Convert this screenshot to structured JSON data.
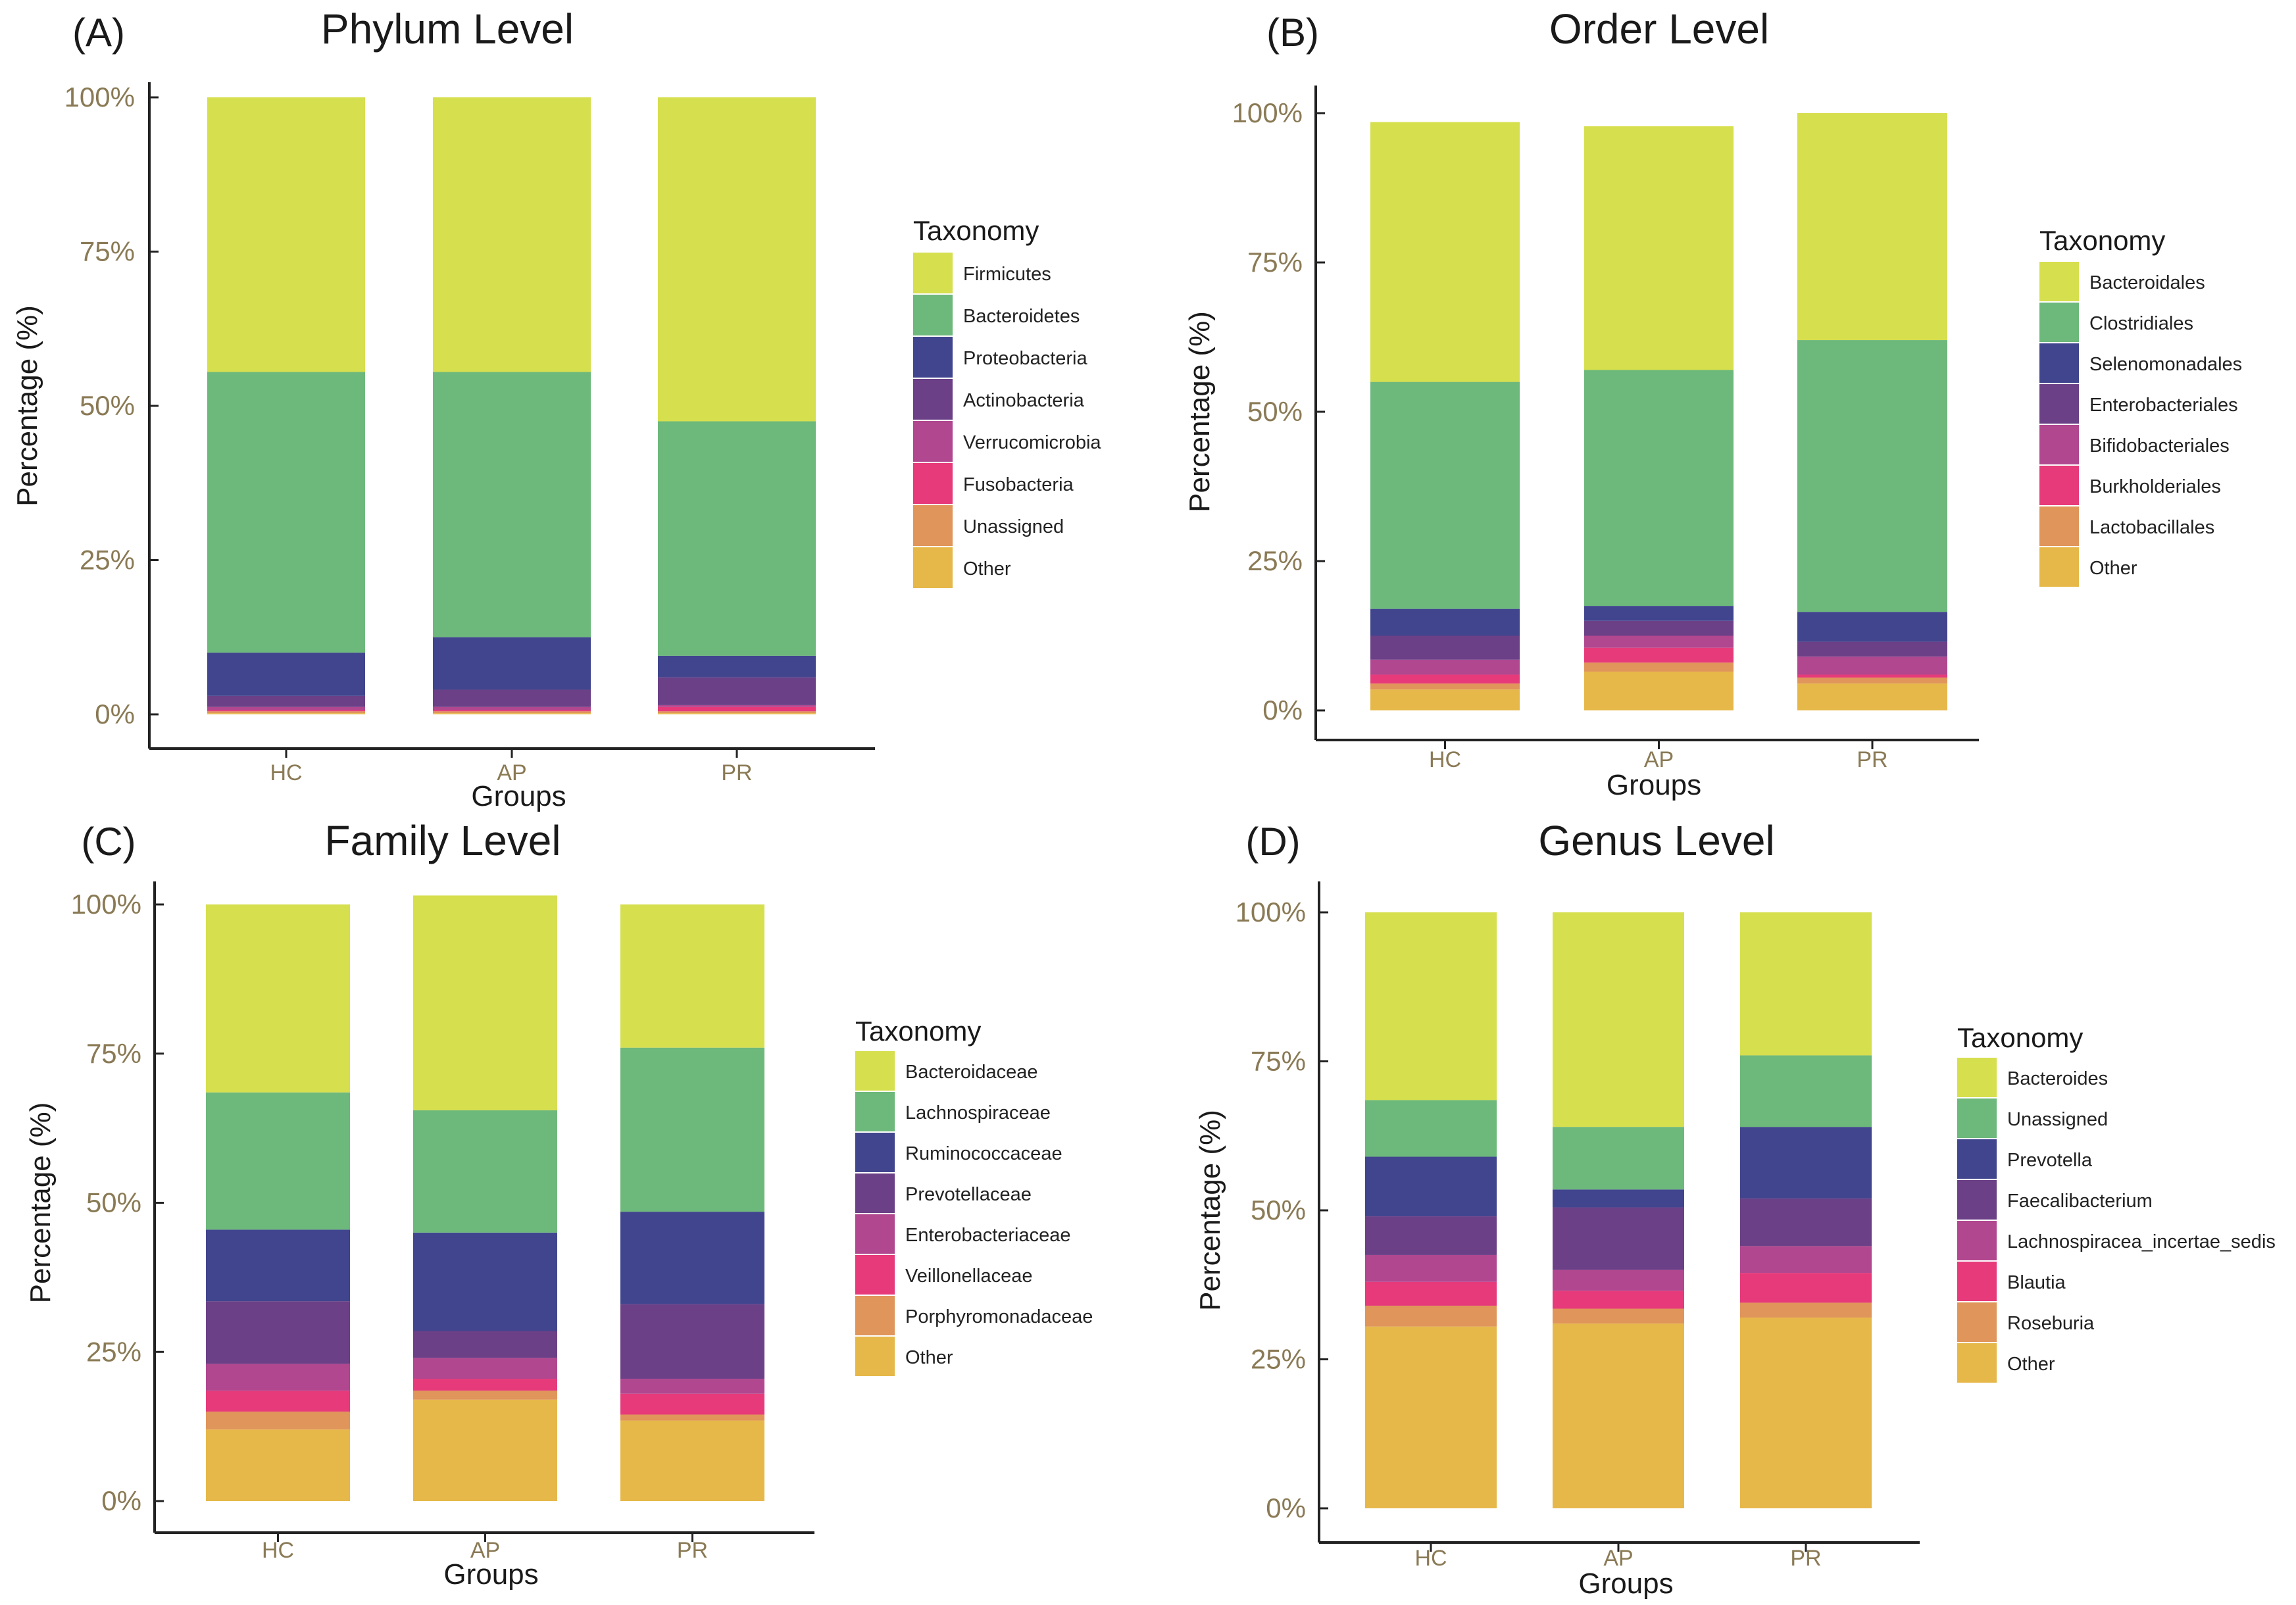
{
  "chart_data": [
    {
      "type": "bar",
      "stacked": true,
      "panel_label": "(A)",
      "title": "Phylum Level",
      "xlabel": "Groups",
      "ylabel": "Percentage (%)",
      "ylim": [
        0,
        100
      ],
      "yticks": [
        "0%",
        "25%",
        "50%",
        "75%",
        "100%"
      ],
      "categories": [
        "HC",
        "AP",
        "PR"
      ],
      "legend_title": "Taxonomy",
      "series": [
        {
          "name": "Firmicutes",
          "color": "#d6df4e",
          "values": [
            44.5,
            44.5,
            52.5
          ]
        },
        {
          "name": "Bacteroidetes",
          "color": "#6db87b",
          "values": [
            45.5,
            43.0,
            38.0
          ]
        },
        {
          "name": "Proteobacteria",
          "color": "#41458e",
          "values": [
            7.0,
            8.5,
            3.5
          ]
        },
        {
          "name": "Actinobacteria",
          "color": "#6b4087",
          "values": [
            1.8,
            2.8,
            4.5
          ]
        },
        {
          "name": "Verrucomicrobia",
          "color": "#b0478f",
          "values": [
            0.5,
            0.5,
            0.3
          ]
        },
        {
          "name": "Fusobacteria",
          "color": "#e63a7a",
          "values": [
            0.2,
            0.2,
            0.7
          ]
        },
        {
          "name": "Unassigned",
          "color": "#e0955a",
          "values": [
            0.3,
            0.3,
            0.3
          ]
        },
        {
          "name": "Other",
          "color": "#e6b84a",
          "values": [
            0.2,
            0.2,
            0.2
          ]
        }
      ]
    },
    {
      "type": "bar",
      "stacked": true,
      "panel_label": "(B)",
      "title": "Order Level",
      "xlabel": "Groups",
      "ylabel": "Percentage (%)",
      "ylim": [
        0,
        100
      ],
      "yticks": [
        "0%",
        "25%",
        "50%",
        "75%",
        "100%"
      ],
      "categories": [
        "HC",
        "AP",
        "PR"
      ],
      "legend_title": "Taxonomy",
      "series": [
        {
          "name": "Bacteroidales",
          "color": "#d6df4e",
          "values": [
            43.5,
            40.8,
            38.0
          ]
        },
        {
          "name": "Clostridiales",
          "color": "#6db87b",
          "values": [
            38.0,
            39.5,
            45.5
          ]
        },
        {
          "name": "Selenomonadales",
          "color": "#41458e",
          "values": [
            4.5,
            2.5,
            5.0
          ]
        },
        {
          "name": "Enterobacteriales",
          "color": "#6b4087",
          "values": [
            4.0,
            2.5,
            2.5
          ]
        },
        {
          "name": "Bifidobacteriales",
          "color": "#b0478f",
          "values": [
            2.5,
            2.0,
            3.0
          ]
        },
        {
          "name": "Burkholderiales",
          "color": "#e63a7a",
          "values": [
            1.5,
            2.5,
            0.5
          ]
        },
        {
          "name": "Lactobacillales",
          "color": "#e0955a",
          "values": [
            1.0,
            1.5,
            1.0
          ]
        },
        {
          "name": "Other",
          "color": "#e6b84a",
          "values": [
            3.5,
            6.5,
            4.5
          ]
        }
      ]
    },
    {
      "type": "bar",
      "stacked": true,
      "panel_label": "(C)",
      "title": "Family Level",
      "xlabel": "Groups",
      "ylabel": "Percentage (%)",
      "ylim": [
        0,
        100
      ],
      "yticks": [
        "0%",
        "25%",
        "50%",
        "75%",
        "100%"
      ],
      "categories": [
        "HC",
        "AP",
        "PR"
      ],
      "legend_title": "Taxonomy",
      "series": [
        {
          "name": "Bacteroidaceae",
          "color": "#d6df4e",
          "values": [
            31.5,
            36.0,
            24.0
          ]
        },
        {
          "name": "Lachnospiraceae",
          "color": "#6db87b",
          "values": [
            23.0,
            20.5,
            27.5
          ]
        },
        {
          "name": "Ruminococcaceae",
          "color": "#41458e",
          "values": [
            12.0,
            16.5,
            15.5
          ]
        },
        {
          "name": "Prevotellaceae",
          "color": "#6b4087",
          "values": [
            10.5,
            4.5,
            12.5
          ]
        },
        {
          "name": "Enterobacteriaceae",
          "color": "#b0478f",
          "values": [
            4.5,
            3.5,
            2.5
          ]
        },
        {
          "name": "Veillonellaceae",
          "color": "#e63a7a",
          "values": [
            3.5,
            2.0,
            3.5
          ]
        },
        {
          "name": "Porphyromonadaceae",
          "color": "#e0955a",
          "values": [
            3.0,
            1.5,
            1.0
          ]
        },
        {
          "name": "Other",
          "color": "#e6b84a",
          "values": [
            12.0,
            17.0,
            13.5
          ]
        }
      ]
    },
    {
      "type": "bar",
      "stacked": true,
      "panel_label": "(D)",
      "title": "Genus Level",
      "xlabel": "Groups",
      "ylabel": "Percentage (%)",
      "ylim": [
        0,
        100
      ],
      "yticks": [
        "0%",
        "25%",
        "50%",
        "75%",
        "100%"
      ],
      "categories": [
        "HC",
        "AP",
        "PR"
      ],
      "legend_title": "Taxonomy",
      "series": [
        {
          "name": "Bacteroides",
          "color": "#d6df4e",
          "values": [
            31.5,
            36.0,
            24.0
          ]
        },
        {
          "name": "Unassigned",
          "color": "#6db87b",
          "values": [
            9.5,
            10.5,
            12.0
          ]
        },
        {
          "name": "Prevotella",
          "color": "#41458e",
          "values": [
            10.0,
            3.0,
            12.0
          ]
        },
        {
          "name": "Faecalibacterium",
          "color": "#6b4087",
          "values": [
            6.5,
            10.5,
            8.0
          ]
        },
        {
          "name": "Lachnospiracea_incertae_sedis",
          "color": "#b0478f",
          "values": [
            4.5,
            3.5,
            4.5
          ]
        },
        {
          "name": "Blautia",
          "color": "#e63a7a",
          "values": [
            4.0,
            3.0,
            5.0
          ]
        },
        {
          "name": "Roseburia",
          "color": "#e0955a",
          "values": [
            3.5,
            2.5,
            2.5
          ]
        },
        {
          "name": "Other",
          "color": "#e6b84a",
          "values": [
            30.5,
            31.0,
            32.0
          ]
        }
      ]
    }
  ]
}
